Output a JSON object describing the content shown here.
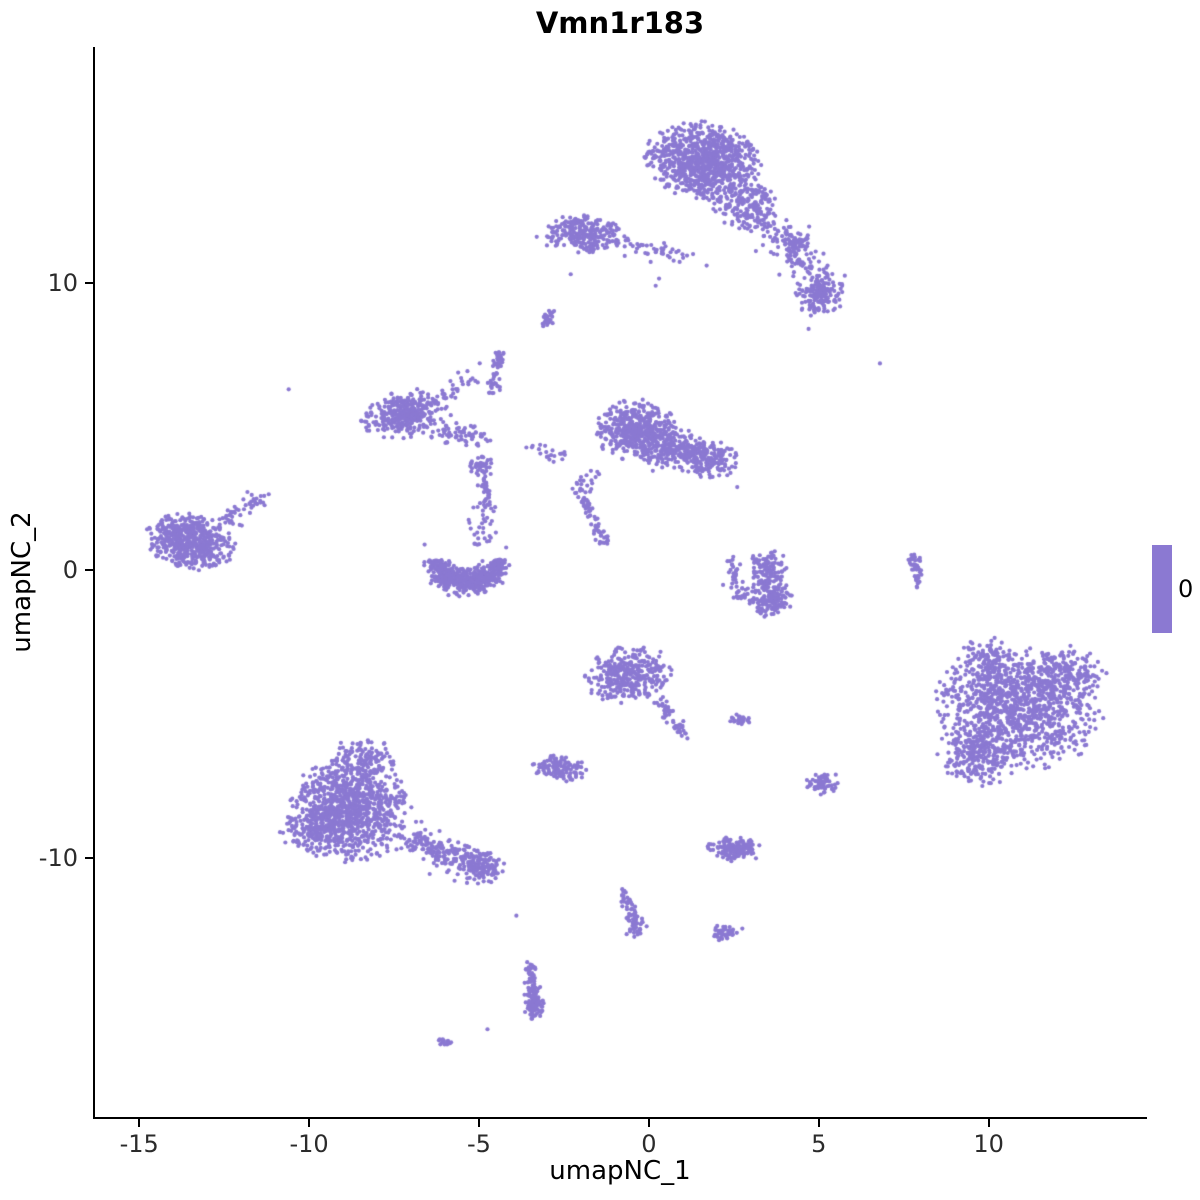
{
  "chart_data": {
    "type": "scatter",
    "title": "Vmn1r183",
    "xlabel": "umapNC_1",
    "ylabel": "umapNC_2",
    "xlim": [
      -16.3,
      14.6
    ],
    "ylim": [
      -19.0,
      18.2
    ],
    "xticks": [
      -15,
      -10,
      -5,
      0,
      5,
      10
    ],
    "yticks": [
      -10,
      0,
      10
    ],
    "grid": false,
    "point_color": "#8b79d2",
    "point_radius": 2.1,
    "legend": {
      "position": "right",
      "value": "0",
      "color": "#8b79d2"
    },
    "clusters": [
      {
        "t": "g",
        "cx": 1.6,
        "cy": 14.2,
        "sx": 0.8,
        "sy": 0.65,
        "rot": -15,
        "n": 900
      },
      {
        "t": "g",
        "cx": 2.9,
        "cy": 12.7,
        "sx": 0.5,
        "sy": 0.45,
        "rot": -30,
        "n": 170
      },
      {
        "t": "l",
        "x1": 3.4,
        "y1": 12.3,
        "x2": 5.2,
        "y2": 9.9,
        "j": 0.3,
        "n": 130
      },
      {
        "t": "g",
        "cx": 5.05,
        "cy": 9.55,
        "sx": 0.35,
        "sy": 0.35,
        "rot": 0,
        "n": 150
      },
      {
        "t": "g",
        "cx": 4.35,
        "cy": 11.4,
        "sx": 0.22,
        "sy": 0.18,
        "rot": 0,
        "n": 45
      },
      {
        "t": "g",
        "cx": -1.9,
        "cy": 11.7,
        "sx": 0.55,
        "sy": 0.3,
        "rot": -5,
        "n": 260
      },
      {
        "t": "l",
        "x1": -0.9,
        "y1": 11.4,
        "x2": 1.0,
        "y2": 10.9,
        "j": 0.18,
        "n": 45
      },
      {
        "t": "l",
        "x1": -3.1,
        "y1": 8.5,
        "x2": -2.85,
        "y2": 8.95,
        "j": 0.07,
        "n": 28
      },
      {
        "t": "g",
        "cx": -7.2,
        "cy": 5.45,
        "sx": 0.6,
        "sy": 0.38,
        "rot": 15,
        "n": 330
      },
      {
        "t": "l",
        "x1": -6.3,
        "y1": 4.9,
        "x2": -4.75,
        "y2": 4.55,
        "j": 0.18,
        "n": 70
      },
      {
        "t": "l",
        "x1": -4.65,
        "y1": 6.1,
        "x2": -4.35,
        "y2": 7.65,
        "j": 0.1,
        "n": 55
      },
      {
        "t": "l",
        "x1": -6.0,
        "y1": 6.0,
        "x2": -4.9,
        "y2": 6.9,
        "j": 0.15,
        "n": 30
      },
      {
        "t": "g",
        "cx": -4.95,
        "cy": 3.6,
        "sx": 0.18,
        "sy": 0.18,
        "rot": 0,
        "n": 40
      },
      {
        "t": "l",
        "x1": -4.85,
        "y1": 3.3,
        "x2": -4.7,
        "y2": 2.1,
        "j": 0.09,
        "n": 40
      },
      {
        "t": "g",
        "cx": -0.4,
        "cy": 4.9,
        "sx": 0.55,
        "sy": 0.5,
        "rot": 0,
        "n": 420
      },
      {
        "t": "g",
        "cx": 1.5,
        "cy": 3.95,
        "sx": 0.55,
        "sy": 0.33,
        "rot": -15,
        "n": 260
      },
      {
        "t": "g",
        "cx": 0.4,
        "cy": 4.3,
        "sx": 0.5,
        "sy": 0.4,
        "rot": 0,
        "n": 150
      },
      {
        "t": "l",
        "x1": -1.6,
        "y1": 3.4,
        "x2": -2.1,
        "y2": 2.7,
        "j": 0.15,
        "n": 25
      },
      {
        "t": "l",
        "x1": -3.4,
        "y1": 4.3,
        "x2": -2.5,
        "y2": 4.0,
        "j": 0.15,
        "n": 20
      },
      {
        "t": "l",
        "x1": -2.0,
        "y1": 2.55,
        "x2": -1.25,
        "y2": 0.95,
        "j": 0.09,
        "n": 60
      },
      {
        "t": "g",
        "cx": -13.5,
        "cy": 1.0,
        "sx": 0.62,
        "sy": 0.45,
        "rot": -15,
        "n": 560
      },
      {
        "t": "l",
        "x1": -12.5,
        "y1": 1.7,
        "x2": -11.5,
        "y2": 2.55,
        "j": 0.14,
        "n": 50
      },
      {
        "t": "a",
        "cx": -5.35,
        "cy": 0.45,
        "r": 0.95,
        "yr": 0.85,
        "a1": 185,
        "a2": 355,
        "j": 0.16,
        "n": 420
      },
      {
        "t": "g",
        "cx": -5.35,
        "cy": -0.4,
        "sx": 0.5,
        "sy": 0.25,
        "rot": 0,
        "n": 170
      },
      {
        "t": "l",
        "x1": -4.9,
        "y1": 1.0,
        "x2": -5.0,
        "y2": 2.3,
        "j": 0.2,
        "n": 30
      },
      {
        "t": "g",
        "cx": 3.5,
        "cy": 0.1,
        "sx": 0.28,
        "sy": 0.3,
        "rot": 0,
        "n": 100
      },
      {
        "t": "g",
        "cx": 3.55,
        "cy": -0.9,
        "sx": 0.33,
        "sy": 0.33,
        "rot": 0,
        "n": 170
      },
      {
        "t": "l",
        "x1": 2.35,
        "y1": 0.4,
        "x2": 2.75,
        "y2": -1.05,
        "j": 0.1,
        "n": 45
      },
      {
        "t": "l",
        "x1": 7.78,
        "y1": 0.55,
        "x2": 7.95,
        "y2": -0.55,
        "j": 0.06,
        "n": 45
      },
      {
        "t": "g",
        "cx": 10.9,
        "cy": -4.8,
        "sx": 1.15,
        "sy": 1.0,
        "rot": -10,
        "n": 1050
      },
      {
        "t": "g",
        "cx": 9.7,
        "cy": -6.4,
        "sx": 0.6,
        "sy": 0.5,
        "rot": 0,
        "n": 230
      },
      {
        "t": "g",
        "cx": 12.3,
        "cy": -3.7,
        "sx": 0.55,
        "sy": 0.5,
        "rot": 0,
        "n": 190
      },
      {
        "t": "g",
        "cx": 10.1,
        "cy": -3.3,
        "sx": 0.5,
        "sy": 0.45,
        "rot": 0,
        "n": 140
      },
      {
        "t": "g",
        "cx": -0.6,
        "cy": -3.6,
        "sx": 0.6,
        "sy": 0.45,
        "rot": 15,
        "n": 360
      },
      {
        "t": "l",
        "x1": 0.3,
        "y1": -4.5,
        "x2": 1.0,
        "y2": -5.7,
        "j": 0.12,
        "n": 50
      },
      {
        "t": "g",
        "cx": 2.7,
        "cy": -5.2,
        "sx": 0.14,
        "sy": 0.1,
        "rot": 0,
        "n": 30
      },
      {
        "t": "g",
        "cx": -2.6,
        "cy": -6.9,
        "sx": 0.4,
        "sy": 0.22,
        "rot": -10,
        "n": 130
      },
      {
        "t": "g",
        "cx": 5.1,
        "cy": -7.4,
        "sx": 0.22,
        "sy": 0.18,
        "rot": 0,
        "n": 60
      },
      {
        "t": "g",
        "cx": -8.8,
        "cy": -8.3,
        "sx": 0.85,
        "sy": 0.85,
        "rot": 0,
        "n": 1000
      },
      {
        "t": "g",
        "cx": -8.4,
        "cy": -6.6,
        "sx": 0.55,
        "sy": 0.35,
        "rot": 0,
        "n": 140
      },
      {
        "t": "l",
        "x1": -6.9,
        "y1": -9.4,
        "x2": -4.8,
        "y2": -10.4,
        "j": 0.28,
        "n": 230
      },
      {
        "t": "g",
        "cx": -4.85,
        "cy": -10.3,
        "sx": 0.3,
        "sy": 0.22,
        "rot": 0,
        "n": 70
      },
      {
        "t": "g",
        "cx": -9.9,
        "cy": -9.2,
        "sx": 0.5,
        "sy": 0.4,
        "rot": 0,
        "n": 120
      },
      {
        "t": "g",
        "cx": 2.5,
        "cy": -9.7,
        "sx": 0.38,
        "sy": 0.2,
        "rot": -5,
        "n": 150
      },
      {
        "t": "l",
        "x1": -0.75,
        "y1": -11.2,
        "x2": -0.35,
        "y2": -12.35,
        "j": 0.1,
        "n": 60
      },
      {
        "t": "g",
        "cx": -0.45,
        "cy": -12.55,
        "sx": 0.12,
        "sy": 0.1,
        "rot": 0,
        "n": 15
      },
      {
        "t": "g",
        "cx": 2.2,
        "cy": -12.6,
        "sx": 0.2,
        "sy": 0.13,
        "rot": 0,
        "n": 45
      },
      {
        "t": "l",
        "x1": -3.5,
        "y1": -13.7,
        "x2": -3.35,
        "y2": -15.3,
        "j": 0.09,
        "n": 90
      },
      {
        "t": "g",
        "cx": -3.4,
        "cy": -15.15,
        "sx": 0.16,
        "sy": 0.22,
        "rot": 0,
        "n": 55
      },
      {
        "t": "l",
        "x1": -6.15,
        "y1": -16.3,
        "x2": -5.85,
        "y2": -16.45,
        "j": 0.05,
        "n": 16
      }
    ],
    "singles": [
      [
        -10.6,
        6.3
      ],
      [
        6.8,
        7.2
      ],
      [
        4.7,
        8.4
      ],
      [
        -3.9,
        -12.0
      ],
      [
        1.3,
        11.0
      ],
      [
        1.7,
        10.6
      ],
      [
        0.3,
        10.15
      ],
      [
        0.2,
        9.9
      ],
      [
        -2.3,
        10.3
      ],
      [
        -3.3,
        11.6
      ],
      [
        -3.0,
        11.3
      ],
      [
        5.5,
        -7.1
      ],
      [
        2.75,
        -12.45
      ],
      [
        -4.75,
        -15.95
      ],
      [
        2.6,
        2.9
      ],
      [
        -6.6,
        0.9
      ],
      [
        -4.2,
        0.8
      ]
    ]
  }
}
